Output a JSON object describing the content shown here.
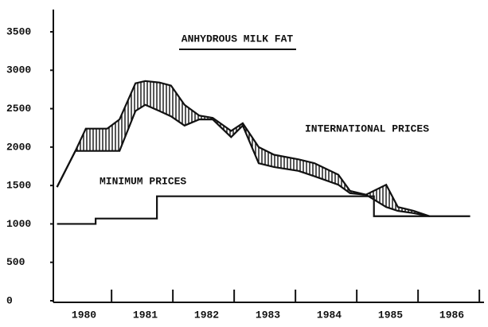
{
  "chart_data": {
    "type": "line",
    "title": "ANHYDROUS MILK FAT",
    "xlim": [
      1979.5,
      1986.5
    ],
    "xticks": [
      1980,
      1981,
      1982,
      1983,
      1984,
      1985,
      1986
    ],
    "xminor": [
      1980.45,
      1981.45,
      1982.45,
      1983.45,
      1984.45,
      1985.45,
      1986.45
    ],
    "ylim": [
      0,
      3500
    ],
    "yticks": [
      0,
      500,
      1000,
      1500,
      2000,
      2500,
      3000,
      3500
    ],
    "color": "#111111",
    "series": [
      {
        "name": "INTERNATIONAL PRICES",
        "color": "#111111",
        "x": [
          1979.56,
          1979.86,
          1980.03,
          1980.38,
          1980.58,
          1980.84,
          1981.0,
          1981.23,
          1981.42,
          1981.64,
          1981.88,
          1982.1,
          1982.4,
          1982.59,
          1982.85,
          1983.1,
          1983.5,
          1983.76,
          1984.15,
          1984.34,
          1984.6,
          1984.93,
          1985.12,
          1985.38,
          1985.64
        ],
        "values": [
          1480,
          1950,
          2240,
          2240,
          2360,
          2830,
          2860,
          2840,
          2800,
          2550,
          2410,
          2380,
          2210,
          2310,
          2000,
          1900,
          1840,
          1790,
          1640,
          1430,
          1380,
          1510,
          1220,
          1170,
          1100
        ],
        "low": [
          1480,
          1950,
          1950,
          1950,
          1950,
          2470,
          2550,
          2470,
          2400,
          2280,
          2360,
          2360,
          2130,
          2280,
          1790,
          1740,
          1690,
          1620,
          1510,
          1400,
          1380,
          1220,
          1170,
          1140,
          1100
        ]
      },
      {
        "name": "MINIMUM PRICES",
        "color": "#111111",
        "x": [
          1979.56,
          1980.19,
          1980.19,
          1981.19,
          1981.19,
          1984.73,
          1984.73,
          1985.7,
          1986.3
        ],
        "values": [
          1000,
          1000,
          1070,
          1070,
          1360,
          1360,
          1100,
          1100,
          1100
        ]
      }
    ]
  }
}
